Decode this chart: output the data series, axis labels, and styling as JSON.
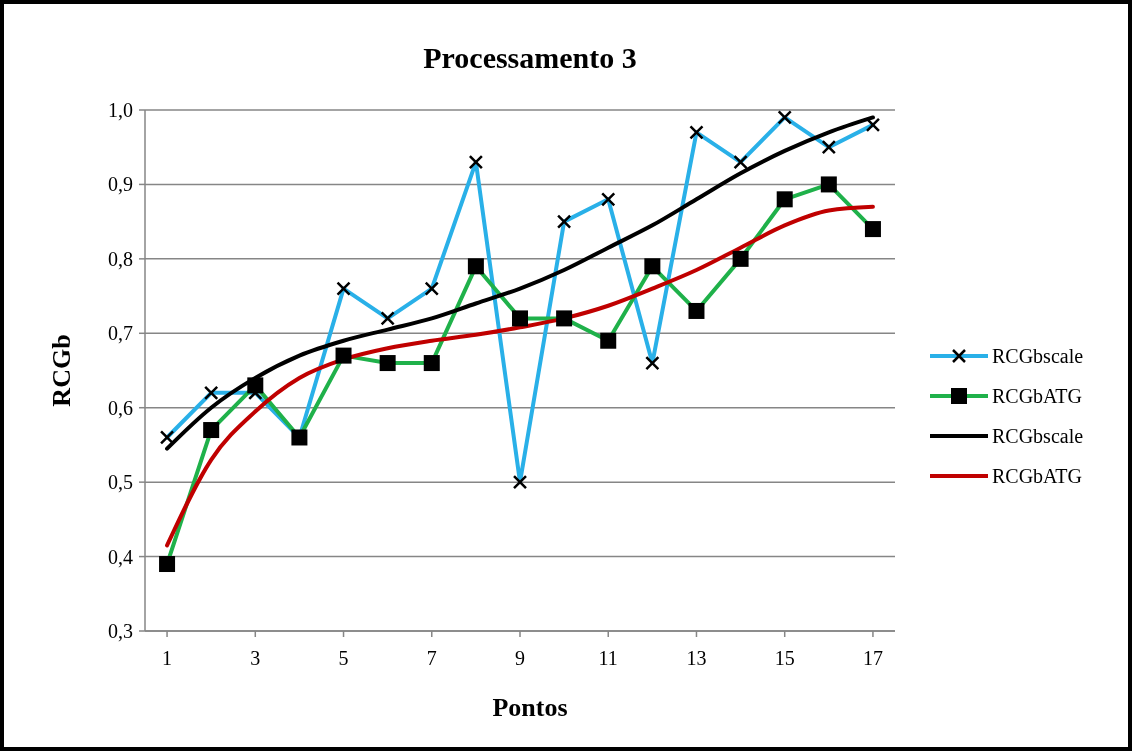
{
  "chart_data": {
    "type": "line",
    "title": "Processamento 3",
    "xlabel": "Pontos",
    "ylabel": "RCGb",
    "x": [
      1,
      2,
      3,
      4,
      5,
      6,
      7,
      8,
      9,
      10,
      11,
      12,
      13,
      14,
      15,
      16,
      17
    ],
    "xlim": [
      0.5,
      17.5
    ],
    "xticks": [
      1,
      3,
      5,
      7,
      9,
      11,
      13,
      15,
      17
    ],
    "ylim": [
      0.3,
      1.0
    ],
    "yticks": [
      {
        "value": 0.3,
        "label": "0,3"
      },
      {
        "value": 0.4,
        "label": "0,4"
      },
      {
        "value": 0.5,
        "label": "0,5"
      },
      {
        "value": 0.6,
        "label": "0,6"
      },
      {
        "value": 0.7,
        "label": "0,7"
      },
      {
        "value": 0.8,
        "label": "0,8"
      },
      {
        "value": 0.9,
        "label": "0,9"
      },
      {
        "value": 1.0,
        "label": "1,0"
      }
    ],
    "grid": "y",
    "legend": "right",
    "series": [
      {
        "name": "RCGbscale",
        "color": "#29b0e8",
        "marker": "cross",
        "values": [
          0.56,
          0.62,
          0.62,
          0.56,
          0.76,
          0.72,
          0.76,
          0.93,
          0.5,
          0.85,
          0.88,
          0.66,
          0.97,
          0.93,
          0.99,
          0.95,
          0.98
        ]
      },
      {
        "name": "RCGbATG",
        "color": "#1fb14a",
        "marker": "square",
        "values": [
          0.39,
          0.57,
          0.63,
          0.56,
          0.67,
          0.66,
          0.66,
          0.79,
          0.72,
          0.72,
          0.69,
          0.79,
          0.73,
          0.8,
          0.88,
          0.9,
          0.84
        ]
      },
      {
        "name": "RCGbscale",
        "color": "#000000",
        "marker": "none",
        "values": [
          0.545,
          0.6,
          0.64,
          0.67,
          0.69,
          0.705,
          0.72,
          0.74,
          0.76,
          0.785,
          0.815,
          0.845,
          0.88,
          0.915,
          0.945,
          0.97,
          0.99
        ]
      },
      {
        "name": "RCGbATG",
        "color": "#c00000",
        "marker": "none",
        "values": [
          0.415,
          0.53,
          0.595,
          0.64,
          0.665,
          0.68,
          0.69,
          0.698,
          0.708,
          0.72,
          0.737,
          0.76,
          0.785,
          0.815,
          0.845,
          0.865,
          0.87
        ]
      }
    ]
  }
}
